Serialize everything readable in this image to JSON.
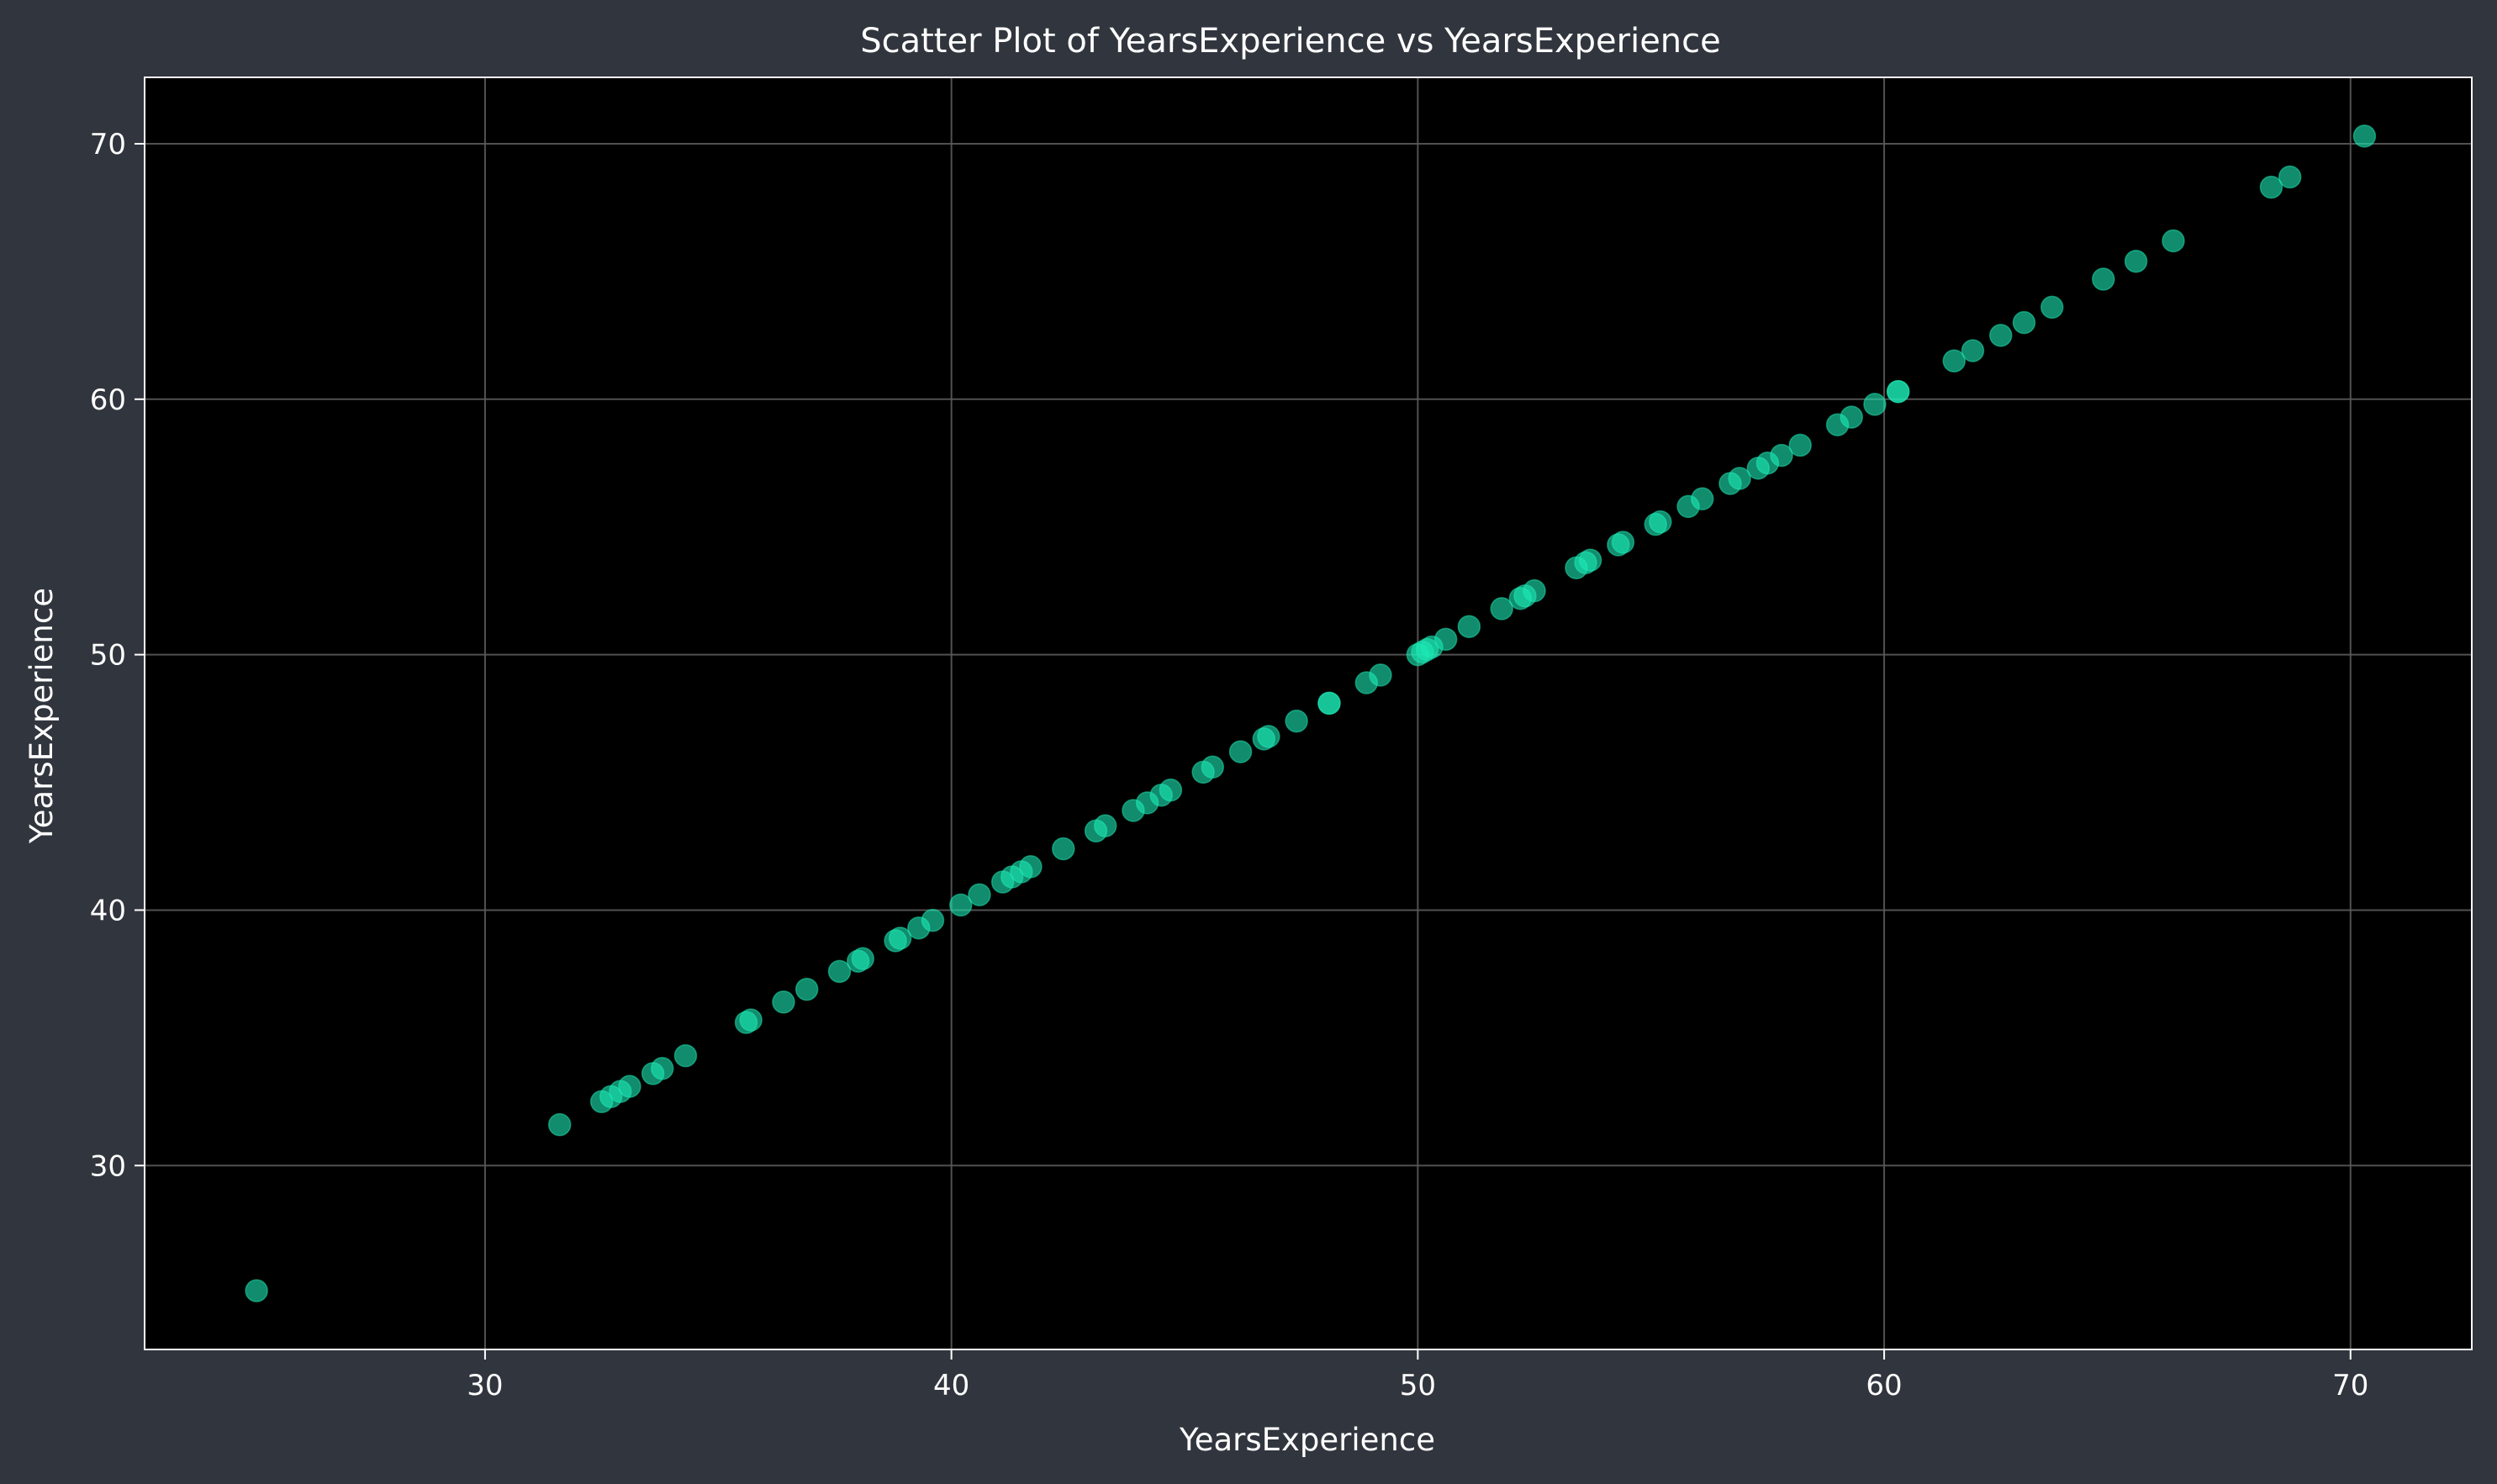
{
  "chart_data": {
    "type": "scatter",
    "title": "Scatter Plot of YearsExperience vs YearsExperience",
    "xlabel": "YearsExperience",
    "ylabel": "YearsExperience",
    "xlim": [
      22.7,
      72.6
    ],
    "ylim": [
      22.8,
      72.6
    ],
    "xticks": [
      30,
      40,
      50,
      60,
      70
    ],
    "yticks": [
      30,
      40,
      50,
      60,
      70
    ],
    "grid": true,
    "colors": {
      "page_background": "#31353e",
      "plot_background": "#000000",
      "point": "#1de9b6",
      "grid": "#5a5a5a",
      "spine": "#ffffff",
      "text": "#ffffff"
    },
    "x": [
      25.1,
      31.6,
      32.5,
      32.7,
      32.9,
      33.1,
      33.6,
      33.8,
      34.3,
      35.6,
      35.7,
      36.4,
      36.9,
      37.6,
      38.0,
      38.1,
      38.8,
      38.9,
      39.3,
      39.6,
      40.2,
      40.6,
      41.1,
      41.3,
      41.5,
      41.7,
      42.4,
      43.1,
      43.3,
      43.9,
      44.2,
      44.5,
      44.7,
      45.4,
      45.6,
      46.2,
      46.7,
      46.8,
      47.4,
      48.1,
      48.1,
      48.9,
      49.2,
      50.0,
      50.1,
      50.2,
      50.3,
      50.6,
      51.1,
      51.8,
      52.2,
      52.3,
      52.5,
      53.4,
      53.6,
      53.7,
      54.3,
      54.4,
      55.1,
      55.2,
      55.8,
      56.1,
      56.7,
      56.9,
      57.3,
      57.5,
      57.8,
      58.2,
      59.0,
      59.3,
      59.8,
      60.3,
      60.3,
      61.5,
      61.9,
      62.5,
      63.0,
      63.6,
      64.7,
      65.4,
      66.2,
      68.3,
      68.7,
      70.3
    ],
    "y": [
      25.1,
      31.6,
      32.5,
      32.7,
      32.9,
      33.1,
      33.6,
      33.8,
      34.3,
      35.6,
      35.7,
      36.4,
      36.9,
      37.6,
      38.0,
      38.1,
      38.8,
      38.9,
      39.3,
      39.6,
      40.2,
      40.6,
      41.1,
      41.3,
      41.5,
      41.7,
      42.4,
      43.1,
      43.3,
      43.9,
      44.2,
      44.5,
      44.7,
      45.4,
      45.6,
      46.2,
      46.7,
      46.8,
      47.4,
      48.1,
      48.1,
      48.9,
      49.2,
      50.0,
      50.1,
      50.2,
      50.3,
      50.6,
      51.1,
      51.8,
      52.2,
      52.3,
      52.5,
      53.4,
      53.6,
      53.7,
      54.3,
      54.4,
      55.1,
      55.2,
      55.8,
      56.1,
      56.7,
      56.9,
      57.3,
      57.5,
      57.8,
      58.2,
      59.0,
      59.3,
      59.8,
      60.3,
      60.3,
      61.5,
      61.9,
      62.5,
      63.0,
      63.6,
      64.7,
      65.4,
      66.2,
      68.3,
      68.7,
      70.3
    ]
  }
}
